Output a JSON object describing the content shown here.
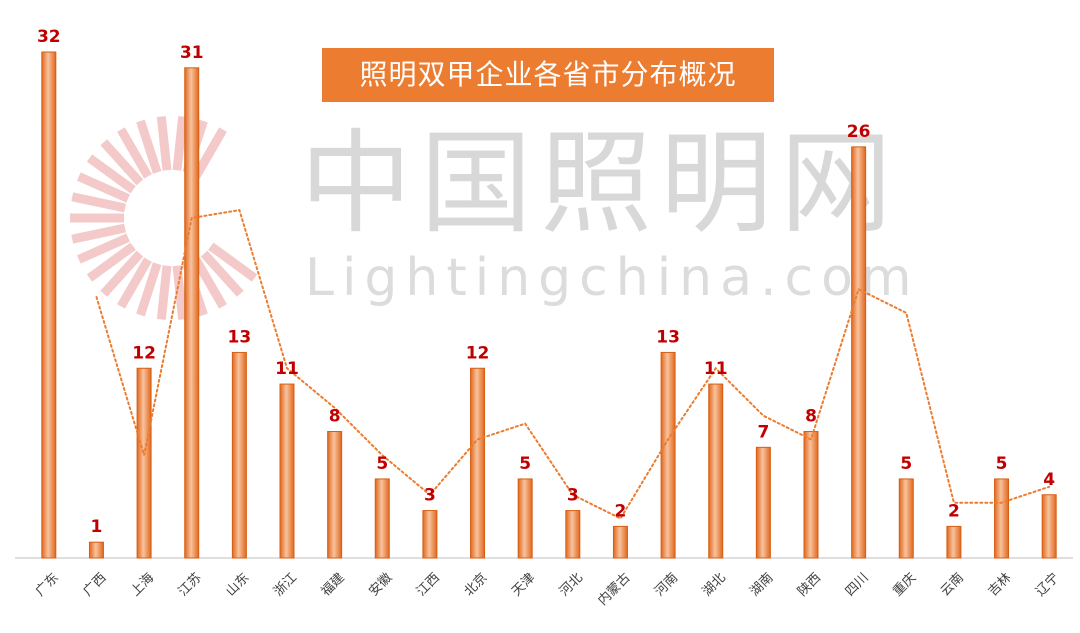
{
  "chart_data": {
    "type": "bar",
    "title": "照明双甲企业各省市分布概况",
    "xlabel": "",
    "ylabel": "",
    "ylim": [
      0,
      32
    ],
    "grid": false,
    "legend": "none",
    "categories": [
      "广东",
      "广西",
      "上海",
      "江苏",
      "山东",
      "浙江",
      "福建",
      "安徽",
      "江西",
      "北京",
      "天津",
      "河北",
      "内蒙古",
      "河南",
      "湖北",
      "湖南",
      "陕西",
      "四川",
      "重庆",
      "云南",
      "吉林",
      "辽宁"
    ],
    "series": [
      {
        "values": [
          32,
          1,
          12,
          31,
          13,
          11,
          8,
          5,
          3,
          12,
          5,
          3,
          2,
          13,
          11,
          7,
          8,
          26,
          5,
          2,
          5,
          4
        ],
        "color": "#ec7c30",
        "data_label_color": "#c00000"
      }
    ],
    "trendline": {
      "type": "moving-average",
      "style": "dotted",
      "color": "#ec7c30",
      "values": [
        null,
        16.5,
        6.5,
        21.5,
        22,
        12,
        9.5,
        6.5,
        4,
        7.5,
        8.5,
        4,
        2.5,
        7.5,
        12,
        9,
        7.5,
        17,
        15.5,
        3.5,
        3.5,
        4.5
      ]
    }
  },
  "watermark": {
    "cn": "中国照明网",
    "en": "Lightingchina.com"
  }
}
